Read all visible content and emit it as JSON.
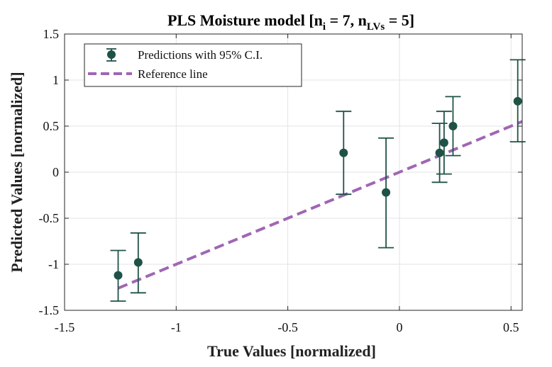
{
  "chart_data": {
    "type": "scatter",
    "title_main": "PLS Moisture model [n",
    "title_sub1": "i",
    "title_mid": " = 7, n",
    "title_sub2": "LVs",
    "title_end": " = 5]",
    "xlabel": "True Values [normalized]",
    "ylabel": "Predicted Values [normalized]",
    "xlim": [
      -1.5,
      0.55
    ],
    "ylim": [
      -1.5,
      1.5
    ],
    "xticks": [
      -1.5,
      -1,
      -0.5,
      0,
      0.5
    ],
    "xtick_labels": [
      "-1.5",
      "-1",
      "-0.5",
      "0",
      "0.5"
    ],
    "yticks": [
      -1.5,
      -1,
      -0.5,
      0,
      0.5,
      1,
      1.5
    ],
    "ytick_labels": [
      "-1.5",
      "-1",
      "-0.5",
      "0",
      "0.5",
      "1",
      "1.5"
    ],
    "grid": true,
    "legend_position": "top-left",
    "series": [
      {
        "name": "Predictions with 95% C.I.",
        "color": "#1f5246",
        "points": [
          {
            "x": -1.26,
            "y": -1.12,
            "lo": -1.4,
            "hi": -0.85
          },
          {
            "x": -1.17,
            "y": -0.98,
            "lo": -1.31,
            "hi": -0.66
          },
          {
            "x": -0.25,
            "y": 0.21,
            "lo": -0.24,
            "hi": 0.66
          },
          {
            "x": -0.06,
            "y": -0.22,
            "lo": -0.82,
            "hi": 0.37
          },
          {
            "x": 0.18,
            "y": 0.21,
            "lo": -0.11,
            "hi": 0.53
          },
          {
            "x": 0.2,
            "y": 0.32,
            "lo": -0.02,
            "hi": 0.66
          },
          {
            "x": 0.24,
            "y": 0.5,
            "lo": 0.18,
            "hi": 0.82
          },
          {
            "x": 0.53,
            "y": 0.77,
            "lo": 0.33,
            "hi": 1.22
          }
        ]
      },
      {
        "name": "Reference line",
        "color": "#a066b4",
        "x": [
          -1.26,
          0.55
        ],
        "y": [
          -1.26,
          0.55
        ]
      }
    ]
  }
}
